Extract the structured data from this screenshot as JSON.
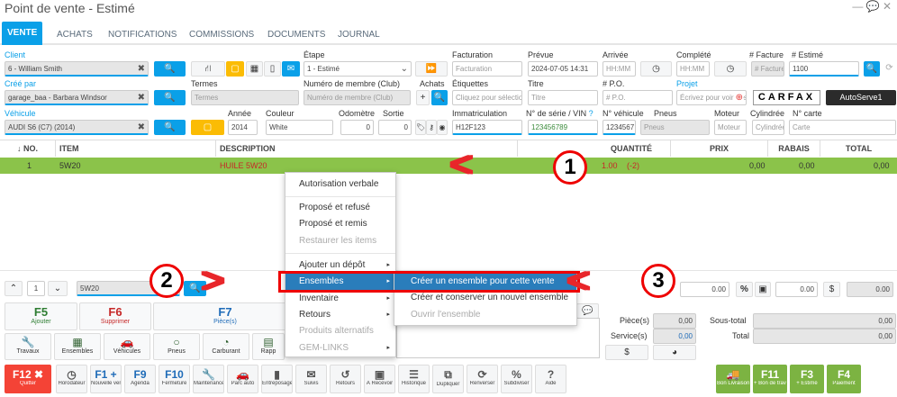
{
  "window": {
    "title": "Point de vente - Estimé",
    "icons": [
      "minus-icon",
      "chat-icon",
      "close-icon"
    ]
  },
  "tabs": [
    "VENTE",
    "ACHATS",
    "NOTIFICATIONS",
    "COMMISSIONS",
    "DOCUMENTS",
    "JOURNAL"
  ],
  "form": {
    "client_label": "Client",
    "client_value": "6 - William Smith",
    "etape_label": "Étape",
    "etape_value": "1 - Estimé",
    "facturation_label": "Facturation",
    "facturation_ph": "Facturation",
    "prevue_label": "Prévue",
    "prevue_value": "2024-07-05 14:31",
    "arrivee_label": "Arrivée",
    "arrivee_ph": "HH:MM",
    "complete_label": "Complété",
    "complete_ph": "HH:MM",
    "facture_label": "# Facture",
    "facture_ph": "# Facture",
    "estime_label": "# Estimé",
    "estime_value": "1100",
    "cree_label": "Créé par",
    "cree_value": "garage_baa - Barbara Windsor",
    "termes_label": "Termes",
    "termes_ph": "Termes",
    "membre_label": "Numéro de membre (Club)",
    "membre_ph": "Numéro de membre (Club)",
    "achats_label": "Achats",
    "etiquettes_label": "Étiquettes",
    "etiquettes_ph": "Cliquez pour sélectionner",
    "titre_label": "Titre",
    "titre_ph": "Titre",
    "po_label": "# P.O.",
    "po_ph": "# P.O.",
    "projet_label": "Projet",
    "projet_ph": "Écrivez pour voir des",
    "carfax": "CARFAX",
    "autoserve": "AutoServe1",
    "vehicule_label": "Véhicule",
    "vehicule_value": "AUDI S6 (C7) (2014)",
    "annee_label": "Année",
    "annee_value": "2014",
    "couleur_label": "Couleur",
    "couleur_value": "White",
    "odometre_label": "Odomètre",
    "odometre_value": "0",
    "sortie_label": "Sortie",
    "sortie_value": "0",
    "immat_label": "Immatriculation",
    "immat_value": "H12F123",
    "vin_label": "N° de série / VIN",
    "vin_value": "123456789",
    "nveh_label": "N° véhicule",
    "nveh_value": "1234567",
    "pneus_label": "Pneus",
    "pneus_ph": "Pneus",
    "moteur_label": "Moteur",
    "moteur_ph": "Moteur",
    "cylindree_label": "Cylindrée",
    "cylindree_ph": "Cylindrée",
    "carte_label": "N° carte",
    "carte_ph": "Carte"
  },
  "table": {
    "headers": [
      "↓ NO.",
      "ITEM",
      "DESCRIPTION",
      "QUANTITÉ",
      "PRIX",
      "RABAIS (%)",
      "TOTAL"
    ],
    "rows": [
      {
        "no": "1",
        "item": "5W20",
        "description": "HUILE 5W20",
        "qty": "1.00",
        "qty_extra": "(-2)",
        "prix": "0,00",
        "rabais": "0,00",
        "total": "0,00"
      }
    ],
    "row_color": "#8bc34a"
  },
  "context_menu": {
    "items": [
      "Autorisation verbale",
      "Proposé et refusé",
      "Proposé et remis",
      "Restaurer les items",
      "Ajouter un dépôt",
      "Ensembles",
      "Inventaire",
      "Retours",
      "Produits alternatifs",
      "GEM-LINKS"
    ],
    "highlighted": "Ensembles",
    "submenu": [
      "Créer un ensemble pour cette vente",
      "Créer et conserver un nouvel ensemble",
      "Ouvrir l'ensemble"
    ]
  },
  "annotations": [
    "1",
    "2",
    "3"
  ],
  "nav": {
    "line": "1",
    "item": "5W20",
    "disc1": "0.00",
    "disc2": "0.00",
    "disc3": "0.00"
  },
  "fkeys": [
    {
      "key": "F5",
      "label": "Ajouter"
    },
    {
      "key": "F6",
      "label": "Supprimer"
    },
    {
      "key": "F7",
      "label": "Pièce(s)"
    }
  ],
  "icon_buttons": [
    "Travaux",
    "Ensembles",
    "Véhicules",
    "Pneus",
    "Carburant",
    "Rapp"
  ],
  "totals": {
    "pieces_label": "Pièce(s)",
    "pieces": "0,00",
    "services_label": "Service(s)",
    "services": "0,00",
    "soustotal_label": "Sous-total",
    "soustotal": "0,00",
    "total_label": "Total",
    "total": "0,00"
  },
  "bottom_bar": [
    {
      "key": "F12 ✖",
      "label": "Quitter"
    },
    {
      "key": "◷",
      "label": "Horodateur"
    },
    {
      "key": "F1 +",
      "label": "Nouvelle vente"
    },
    {
      "key": "F9",
      "label": "Agenda"
    },
    {
      "key": "F10",
      "label": "Fermeture"
    },
    {
      "key": "🔧",
      "label": "Maintenances"
    },
    {
      "key": "🚗",
      "label": "Parc auto"
    },
    {
      "key": "▮",
      "label": "Entreposages"
    },
    {
      "key": "✉",
      "label": "Suivis"
    },
    {
      "key": "↺",
      "label": "Retours"
    },
    {
      "key": "▣",
      "label": "À Recevoir"
    },
    {
      "key": "☰",
      "label": "Historique"
    },
    {
      "key": "⧉",
      "label": "Dupliquer"
    },
    {
      "key": "⟳",
      "label": "Renverser"
    },
    {
      "key": "%",
      "label": "Subdiviser"
    },
    {
      "key": "?",
      "label": "Aide"
    },
    {
      "key": "🚚",
      "label": "Bon Livraison"
    },
    {
      "key": "F11",
      "label": "+ Bon de travail"
    },
    {
      "key": "F3",
      "label": "+ Estimé"
    },
    {
      "key": "F4",
      "label": "Paiement"
    }
  ]
}
